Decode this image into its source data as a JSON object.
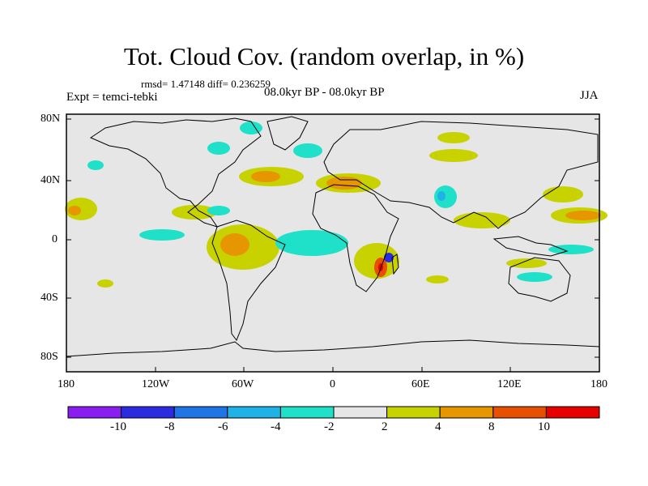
{
  "title": "Tot. Cloud Cov. (random overlap, in %)",
  "stats": "rmsd= 1.47148 diff= 0.236259",
  "experiment": "Expt = temci-tebki",
  "period": "08.0kyr BP - 08.0kyr BP",
  "season": "JJA",
  "axes": {
    "lat_ticks": [
      "80N",
      "40N",
      "0",
      "40S",
      "80S"
    ],
    "lon_ticks": [
      "180",
      "120W",
      "60W",
      "0",
      "60E",
      "120E",
      "180"
    ]
  },
  "colorbar": {
    "labels": [
      "-10",
      "-8",
      "-6",
      "-4",
      "-2",
      "2",
      "4",
      "8",
      "10"
    ],
    "colors": [
      "#8a1ef0",
      "#2b2be0",
      "#1f74e6",
      "#1fb2e6",
      "#1fe0c8",
      "#e6e6e6",
      "#c8d200",
      "#e69600",
      "#e65000",
      "#e60000"
    ]
  },
  "map": {
    "background": "#e6e6e6",
    "coastline_color": "#000000"
  }
}
